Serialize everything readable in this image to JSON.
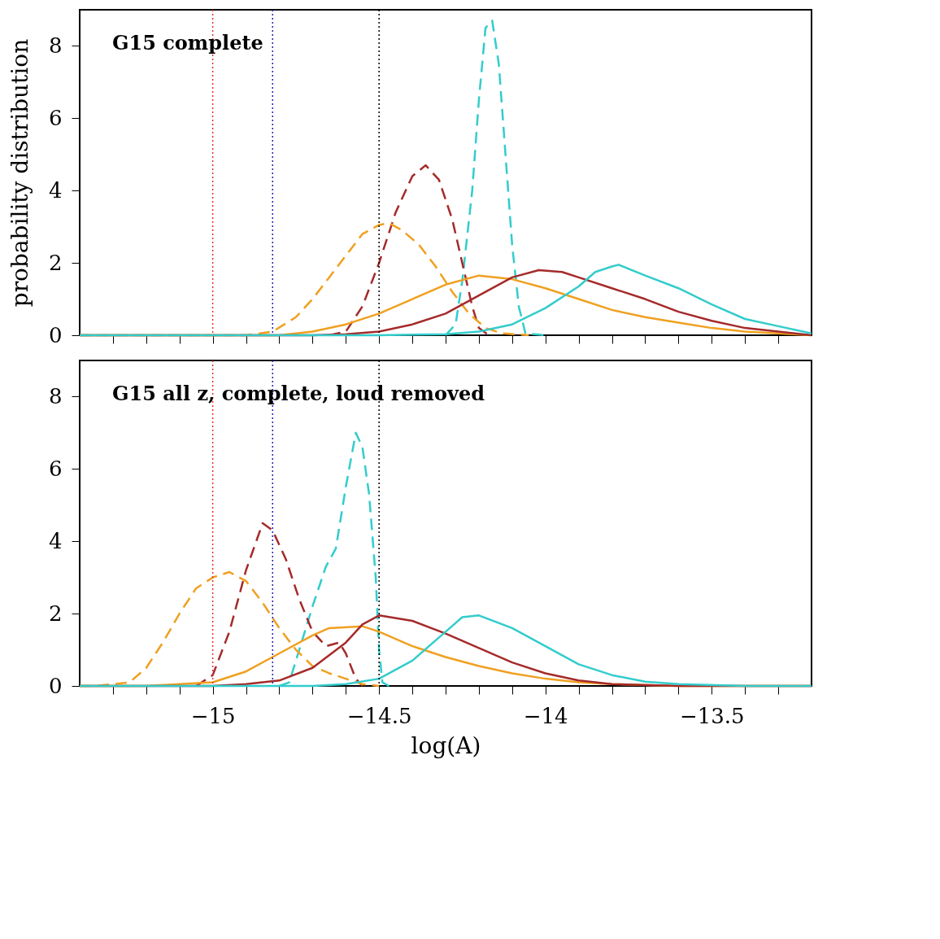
{
  "chart_data": [
    {
      "type": "line",
      "annotations": [
        "G15 complete"
      ],
      "ylabel": "probability distribution",
      "xlim": [
        -15.4,
        -13.2
      ],
      "ylim": [
        0,
        9
      ],
      "yticks": [
        0,
        2,
        4,
        6,
        8
      ],
      "xticks": [
        {
          "value": -15.3,
          "label": null
        },
        {
          "value": -15.2,
          "label": null
        },
        {
          "value": -15.1,
          "label": null
        },
        -15,
        {
          "value": -14.9,
          "label": null
        },
        {
          "value": -14.8,
          "label": null
        },
        {
          "value": -14.7,
          "label": null
        },
        {
          "value": -14.6,
          "label": null
        },
        -14.5,
        {
          "value": -14.4,
          "label": null
        },
        {
          "value": -14.3,
          "label": null
        },
        {
          "value": -14.2,
          "label": null
        },
        {
          "value": -14.1,
          "label": null
        },
        -14,
        {
          "value": -13.9,
          "label": null
        },
        {
          "value": -13.8,
          "label": null
        },
        {
          "value": -13.7,
          "label": null
        },
        {
          "value": -13.6,
          "label": null
        },
        -13.5,
        {
          "value": -13.4,
          "label": null
        },
        {
          "value": -13.3,
          "label": null
        }
      ],
      "tick_labels": "y",
      "grid": false,
      "ref_lines": [
        {
          "axis": "x",
          "value": -15.0,
          "color": "#e03030",
          "line_style": "dotted"
        },
        {
          "axis": "x",
          "value": -14.82,
          "color": "#2020c0",
          "line_style": "dotted"
        },
        {
          "axis": "x",
          "value": -14.5,
          "color": "#000000",
          "line_style": "dotted"
        }
      ],
      "series": [
        {
          "color": "#33cccc",
          "line_style": "dashed",
          "x": [
            -14.3,
            -14.27,
            -14.25,
            -14.22,
            -14.2,
            -14.18,
            -14.16,
            -14.14,
            -14.12,
            -14.1,
            -14.08,
            -14.06,
            -14.0
          ],
          "values": [
            0,
            0.3,
            1.5,
            4,
            6.5,
            8.5,
            8.7,
            7.5,
            5,
            2.5,
            0.8,
            0.05,
            0
          ]
        },
        {
          "color": "#a52a2a",
          "line_style": "dashed",
          "x": [
            -14.65,
            -14.6,
            -14.55,
            -14.5,
            -14.45,
            -14.4,
            -14.36,
            -14.32,
            -14.28,
            -14.25,
            -14.22,
            -14.2,
            -14.17
          ],
          "values": [
            0,
            0.1,
            0.8,
            2,
            3.4,
            4.4,
            4.7,
            4.3,
            3.2,
            2,
            0.8,
            0.2,
            0
          ]
        },
        {
          "color": "#f0a020",
          "line_style": "dashed",
          "x": [
            -15.4,
            -14.9,
            -14.82,
            -14.75,
            -14.7,
            -14.65,
            -14.6,
            -14.55,
            -14.5,
            -14.47,
            -14.43,
            -14.38,
            -14.33,
            -14.28,
            -14.23,
            -14.18,
            -14.13,
            -14.05
          ],
          "values": [
            0,
            0,
            0.1,
            0.5,
            1.0,
            1.6,
            2.2,
            2.8,
            3.05,
            3.1,
            2.9,
            2.5,
            1.9,
            1.2,
            0.6,
            0.2,
            0.05,
            0
          ]
        },
        {
          "color": "#f0a020",
          "line_style": "solid",
          "x": [
            -15.4,
            -14.8,
            -14.7,
            -14.6,
            -14.5,
            -14.4,
            -14.3,
            -14.2,
            -14.1,
            -14.0,
            -13.9,
            -13.8,
            -13.7,
            -13.6,
            -13.5,
            -13.4,
            -13.3,
            -13.2
          ],
          "values": [
            0,
            0,
            0.1,
            0.3,
            0.6,
            1.0,
            1.4,
            1.65,
            1.55,
            1.3,
            1.0,
            0.7,
            0.5,
            0.35,
            0.2,
            0.1,
            0.05,
            0
          ]
        },
        {
          "color": "#a52a2a",
          "line_style": "solid",
          "x": [
            -15.4,
            -14.7,
            -14.6,
            -14.5,
            -14.4,
            -14.3,
            -14.2,
            -14.1,
            -14.02,
            -13.95,
            -13.9,
            -13.8,
            -13.7,
            -13.6,
            -13.5,
            -13.4,
            -13.3,
            -13.2
          ],
          "values": [
            0,
            0,
            0.03,
            0.1,
            0.3,
            0.6,
            1.1,
            1.6,
            1.8,
            1.75,
            1.6,
            1.3,
            1.0,
            0.65,
            0.4,
            0.2,
            0.1,
            0
          ]
        },
        {
          "color": "#33cccc",
          "line_style": "solid",
          "x": [
            -15.4,
            -14.5,
            -14.3,
            -14.2,
            -14.1,
            -14.0,
            -13.9,
            -13.85,
            -13.8,
            -13.78,
            -13.7,
            -13.6,
            -13.5,
            -13.4,
            -13.3,
            -13.2
          ],
          "values": [
            0,
            0,
            0.03,
            0.1,
            0.3,
            0.75,
            1.35,
            1.75,
            1.9,
            1.95,
            1.65,
            1.3,
            0.85,
            0.45,
            0.25,
            0.05
          ]
        }
      ]
    },
    {
      "type": "line",
      "annotations": [
        "G15 all z, complete, loud removed"
      ],
      "xlabel": "log(A)",
      "xlim": [
        -15.4,
        -13.2
      ],
      "ylim": [
        0,
        9
      ],
      "yticks": [
        0,
        2,
        4,
        6,
        8
      ],
      "xticks": [
        {
          "value": -15.3,
          "label": null
        },
        {
          "value": -15.2,
          "label": null
        },
        {
          "value": -15.1,
          "label": null
        },
        -15,
        {
          "value": -14.9,
          "label": null
        },
        {
          "value": -14.8,
          "label": null
        },
        {
          "value": -14.7,
          "label": null
        },
        {
          "value": -14.6,
          "label": null
        },
        -14.5,
        {
          "value": -14.4,
          "label": null
        },
        {
          "value": -14.3,
          "label": null
        },
        {
          "value": -14.2,
          "label": null
        },
        {
          "value": -14.1,
          "label": null
        },
        -14,
        {
          "value": -13.9,
          "label": null
        },
        {
          "value": -13.8,
          "label": null
        },
        {
          "value": -13.7,
          "label": null
        },
        {
          "value": -13.6,
          "label": null
        },
        -13.5,
        {
          "value": -13.4,
          "label": null
        },
        {
          "value": -13.3,
          "label": null
        }
      ],
      "grid": false,
      "ref_lines": [
        {
          "axis": "x",
          "value": -15.0,
          "color": "#e03030",
          "line_style": "dotted"
        },
        {
          "axis": "x",
          "value": -14.82,
          "color": "#2020c0",
          "line_style": "dotted"
        },
        {
          "axis": "x",
          "value": -14.5,
          "color": "#000000",
          "line_style": "dotted"
        }
      ],
      "series": [
        {
          "color": "#33cccc",
          "line_style": "dashed",
          "x": [
            -14.8,
            -14.77,
            -14.74,
            -14.7,
            -14.66,
            -14.63,
            -14.6,
            -14.57,
            -14.55,
            -14.53,
            -14.51,
            -14.5,
            -14.49,
            -14.47
          ],
          "values": [
            0,
            0.1,
            1,
            2.2,
            3.3,
            3.8,
            5.5,
            7.0,
            6.6,
            5.3,
            3.0,
            1.0,
            0.1,
            0
          ]
        },
        {
          "color": "#a52a2a",
          "line_style": "dashed",
          "x": [
            -15.05,
            -15.0,
            -14.95,
            -14.9,
            -14.85,
            -14.82,
            -14.78,
            -14.74,
            -14.7,
            -14.66,
            -14.62,
            -14.6,
            -14.57,
            -14.55
          ],
          "values": [
            0,
            0.3,
            1.5,
            3.2,
            4.5,
            4.3,
            3.5,
            2.4,
            1.5,
            1.1,
            1.2,
            0.9,
            0.2,
            0
          ]
        },
        {
          "color": "#f0a020",
          "line_style": "dashed",
          "x": [
            -15.4,
            -15.35,
            -15.25,
            -15.2,
            -15.15,
            -15.1,
            -15.05,
            -15.0,
            -14.95,
            -14.9,
            -14.85,
            -14.8,
            -14.75,
            -14.7,
            -14.65,
            -14.6,
            -14.55,
            -14.5
          ],
          "values": [
            0,
            0,
            0.1,
            0.5,
            1.2,
            2.0,
            2.7,
            3.0,
            3.15,
            2.9,
            2.3,
            1.6,
            1.0,
            0.55,
            0.35,
            0.2,
            0.05,
            0
          ]
        },
        {
          "color": "#f0a020",
          "line_style": "solid",
          "x": [
            -15.4,
            -15.2,
            -15.0,
            -14.9,
            -14.8,
            -14.7,
            -14.65,
            -14.55,
            -14.5,
            -14.4,
            -14.3,
            -14.2,
            -14.1,
            -14.0,
            -13.9,
            -13.8,
            -13.6,
            -13.2
          ],
          "values": [
            0,
            0,
            0.1,
            0.4,
            0.9,
            1.4,
            1.6,
            1.65,
            1.5,
            1.1,
            0.8,
            0.55,
            0.35,
            0.2,
            0.1,
            0.05,
            0,
            0
          ]
        },
        {
          "color": "#a52a2a",
          "line_style": "solid",
          "x": [
            -15.4,
            -15.0,
            -14.9,
            -14.8,
            -14.7,
            -14.6,
            -14.55,
            -14.5,
            -14.4,
            -14.3,
            -14.2,
            -14.1,
            -14.0,
            -13.9,
            -13.8,
            -13.6,
            -13.2
          ],
          "values": [
            0,
            0,
            0.05,
            0.15,
            0.5,
            1.2,
            1.7,
            1.95,
            1.8,
            1.45,
            1.05,
            0.65,
            0.35,
            0.15,
            0.05,
            0,
            0
          ]
        },
        {
          "color": "#33cccc",
          "line_style": "solid",
          "x": [
            -15.4,
            -14.7,
            -14.6,
            -14.5,
            -14.4,
            -14.3,
            -14.25,
            -14.2,
            -14.1,
            -14.0,
            -13.9,
            -13.8,
            -13.7,
            -13.6,
            -13.4,
            -13.2
          ],
          "values": [
            0,
            0,
            0.05,
            0.2,
            0.7,
            1.5,
            1.9,
            1.95,
            1.6,
            1.1,
            0.6,
            0.3,
            0.12,
            0.05,
            0,
            0
          ]
        }
      ]
    }
  ]
}
